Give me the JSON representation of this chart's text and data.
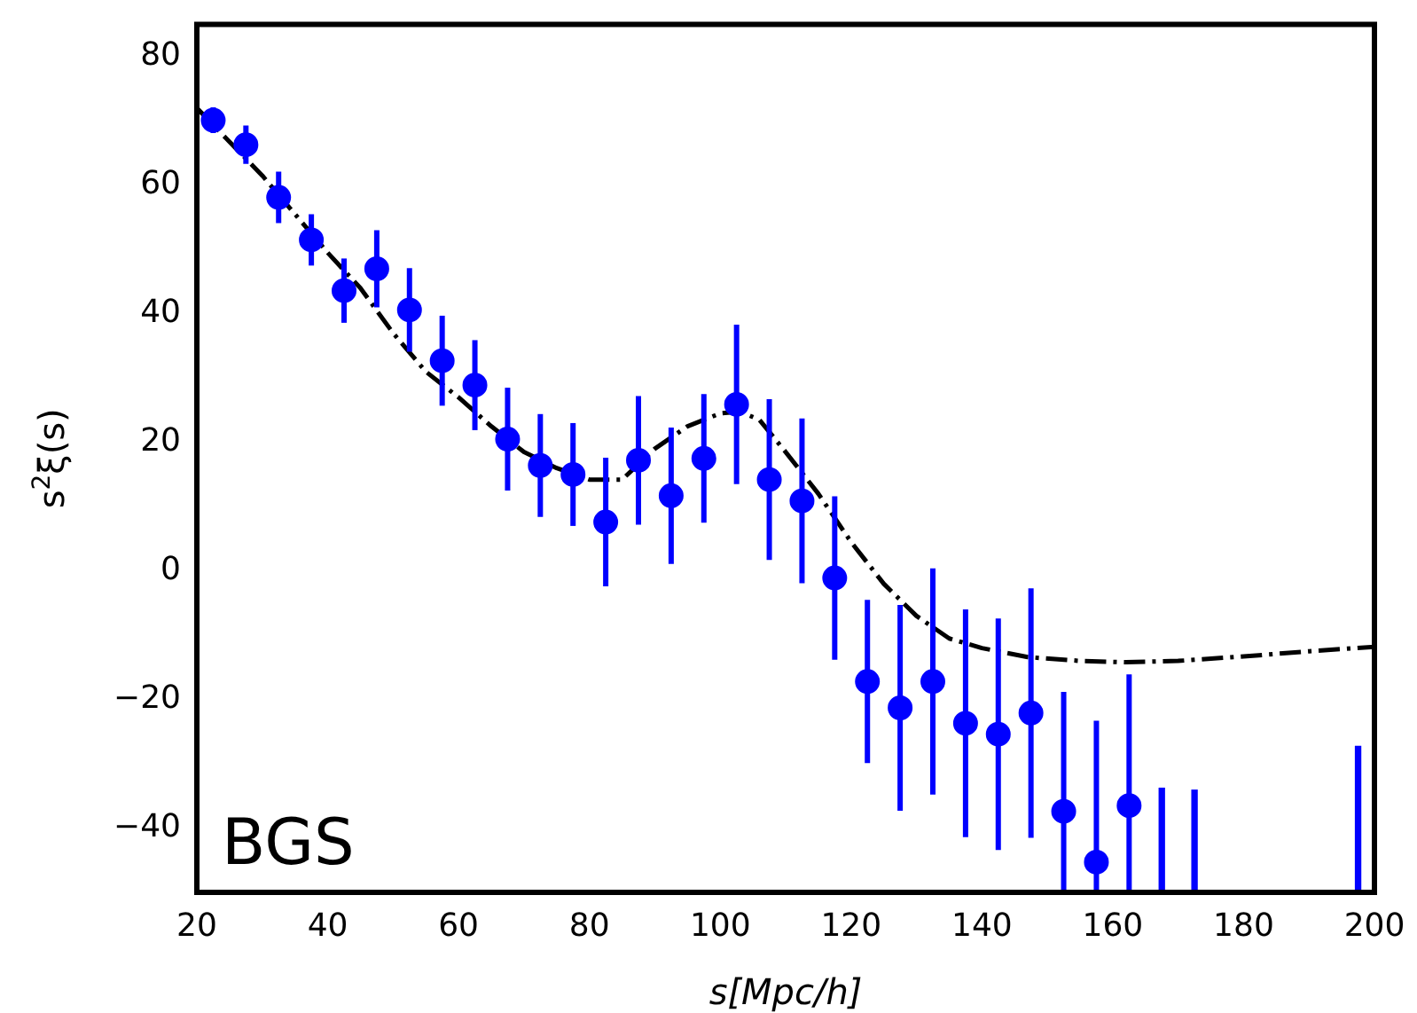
{
  "chart_data": {
    "type": "scatter",
    "xlabel": "s[Mpc/h]",
    "ylabel": "s$^{2}$ξ(s)",
    "annotations": [
      "BGS"
    ],
    "xlim": [
      20,
      200
    ],
    "ylim": [
      -50,
      85
    ],
    "xticks": [
      20,
      40,
      60,
      80,
      100,
      120,
      140,
      160,
      180,
      200
    ],
    "yticks": [
      {
        "value": -40,
        "label": "−40"
      },
      {
        "value": -20,
        "label": "−20"
      },
      0,
      20,
      40,
      60,
      80
    ],
    "grid": false,
    "legend": false,
    "series": [
      {
        "type": "line",
        "color": "#000000",
        "line_style": "dashdot",
        "marker": "none",
        "x": [
          20,
          30,
          40,
          45,
          50,
          55,
          60,
          65,
          70,
          75,
          80,
          85,
          90,
          95,
          100,
          103,
          106,
          110,
          115,
          120,
          125,
          130,
          135,
          140,
          147,
          155,
          162,
          170,
          180,
          190,
          200
        ],
        "values": [
          72,
          61.5,
          49.5,
          44,
          37,
          31,
          27,
          22.5,
          18.5,
          16,
          14.2,
          14.2,
          19,
          22.5,
          24.5,
          24.8,
          23.5,
          18.5,
          12,
          4.5,
          -2,
          -7,
          -10.5,
          -12,
          -13.4,
          -14,
          -14.2,
          -14,
          -13.3,
          -12.5,
          -11.8
        ]
      },
      {
        "color": "#0000ff",
        "marker": "circle",
        "x": [
          22.5,
          27.5,
          32.5,
          37.5,
          42.5,
          47.5,
          52.5,
          57.5,
          62.5,
          67.5,
          72.5,
          77.5,
          82.5,
          87.5,
          92.5,
          97.5,
          102.5,
          107.5,
          112.5,
          117.5,
          122.5,
          127.5,
          132.5,
          137.5,
          142.5,
          147.5,
          152.5,
          157.5,
          162.5
        ],
        "values": [
          70.1,
          66.3,
          58.1,
          51.5,
          43.6,
          47,
          40.6,
          32.7,
          28.9,
          20.5,
          16.4,
          15,
          7.6,
          17.2,
          11.7,
          17.5,
          25.9,
          14.2,
          10.9,
          -1.1,
          -17.2,
          -21.3,
          -17.2,
          -23.7,
          -25.4,
          -22.1,
          -37.4,
          -45.3,
          -36.5
        ],
        "errors": [
          2,
          3,
          4,
          4,
          5,
          6,
          6.5,
          7,
          7,
          8,
          8,
          8,
          10,
          10,
          10.6,
          10,
          12.4,
          12.5,
          12.8,
          12.7,
          12.7,
          16,
          17.6,
          17.7,
          18,
          19.4,
          18.6,
          22,
          20.4
        ]
      },
      {
        "type": "bar",
        "color": "#0000ff",
        "x": [
          167.5,
          172.5,
          197.5
        ],
        "base": [
          -50,
          -50,
          -50
        ],
        "values": [
          16.2,
          15.9,
          22.7
        ]
      }
    ]
  }
}
